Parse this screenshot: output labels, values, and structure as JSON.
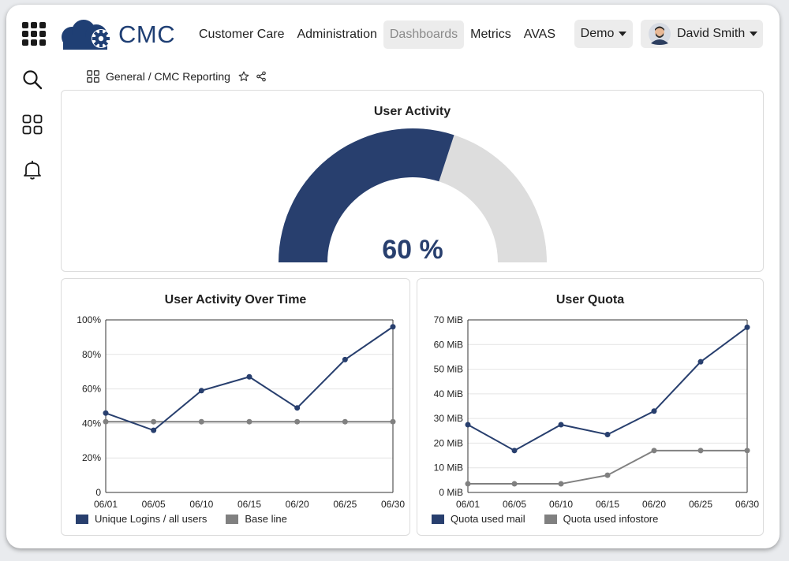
{
  "brand": {
    "name": "CMC"
  },
  "nav": {
    "items": [
      {
        "label": "Customer Care",
        "active": false
      },
      {
        "label": "Administration",
        "active": false
      },
      {
        "label": "Dashboards",
        "active": true
      },
      {
        "label": "Metrics",
        "active": false
      },
      {
        "label": "AVAS",
        "active": false
      }
    ]
  },
  "demo": {
    "label": "Demo"
  },
  "user": {
    "name": "David Smith"
  },
  "sidebar": {
    "icons": [
      "search-icon",
      "dashboards-icon",
      "bell-icon"
    ]
  },
  "breadcrumb": {
    "path": "General / CMC Reporting"
  },
  "colors": {
    "brand": "#1f3f74",
    "series_primary": "#283f6e",
    "series_secondary": "#808080",
    "gauge_track": "#dddddd"
  },
  "gauge": {
    "title": "User Activity",
    "value": 60,
    "display": "60 %"
  },
  "chart_data": [
    {
      "type": "line",
      "title": "User Activity Over Time",
      "x": [
        "06/01",
        "06/05",
        "06/10",
        "06/15",
        "06/20",
        "06/25",
        "06/30"
      ],
      "yticks": [
        "0",
        "20%",
        "40%",
        "60%",
        "80%",
        "100%"
      ],
      "ylim": [
        0,
        100
      ],
      "grid": true,
      "legend": "bottom",
      "series": [
        {
          "name": "Unique Logins / all users",
          "values": [
            46,
            36,
            59,
            67,
            49,
            77,
            96
          ]
        },
        {
          "name": "Base line",
          "values": [
            41,
            41,
            41,
            41,
            41,
            41,
            41
          ]
        }
      ]
    },
    {
      "type": "line",
      "title": "User Quota",
      "x": [
        "06/01",
        "06/05",
        "06/10",
        "06/15",
        "06/20",
        "06/25",
        "06/30"
      ],
      "yticks": [
        "0 MiB",
        "10 MiB",
        "20 MiB",
        "30 MiB",
        "40 MiB",
        "50 MiB",
        "60 MiB",
        "70 MiB"
      ],
      "ylim": [
        0,
        70
      ],
      "grid": true,
      "legend": "bottom",
      "series": [
        {
          "name": "Quota used mail",
          "values": [
            27.5,
            17,
            27.5,
            23.5,
            33,
            53,
            67
          ]
        },
        {
          "name": "Quota used infostore",
          "values": [
            3.5,
            3.5,
            3.5,
            7,
            17,
            17,
            17
          ]
        }
      ]
    }
  ]
}
